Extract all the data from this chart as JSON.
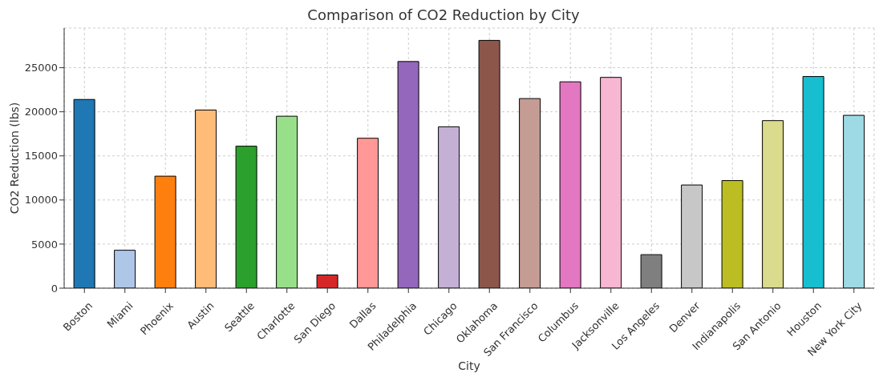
{
  "chart_data": {
    "type": "bar",
    "title": "Comparison of CO2 Reduction by City",
    "xlabel": "City",
    "ylabel": "CO2 Reduction (lbs)",
    "categories": [
      "Boston",
      "Miami",
      "Phoenix",
      "Austin",
      "Seattle",
      "Charlotte",
      "San Diego",
      "Dallas",
      "Philadelphia",
      "Chicago",
      "Oklahoma",
      "San Francisco",
      "Columbus",
      "Jacksonville",
      "Los Angeles",
      "Denver",
      "Indianapolis",
      "San Antonio",
      "Houston",
      "New York City"
    ],
    "values": [
      21400,
      4300,
      12700,
      20200,
      16100,
      19500,
      1500,
      17000,
      25700,
      18300,
      28100,
      21500,
      23400,
      23900,
      3800,
      11700,
      12200,
      19000,
      24000,
      19600
    ],
    "colors": [
      "#1f77b4",
      "#aec7e8",
      "#ff7f0e",
      "#ffbb78",
      "#2ca02c",
      "#98df8a",
      "#d62728",
      "#ff9896",
      "#9467bd",
      "#c5b0d5",
      "#8c564b",
      "#c49c94",
      "#e377c2",
      "#f7b6d2",
      "#7f7f7f",
      "#c7c7c7",
      "#bcbd22",
      "#dbdb8d",
      "#17becf",
      "#9edae5"
    ],
    "ylim": [
      0,
      29500
    ],
    "yticks": [
      0,
      5000,
      10000,
      15000,
      20000,
      25000
    ],
    "grid": true
  }
}
